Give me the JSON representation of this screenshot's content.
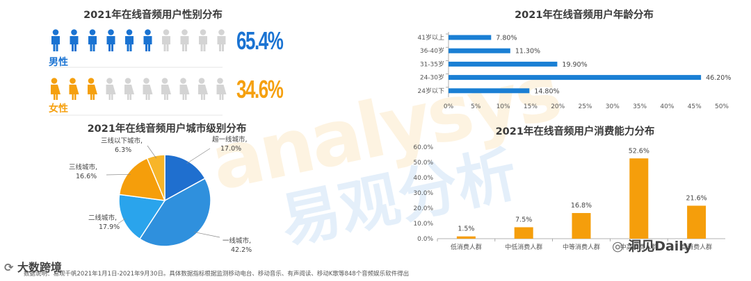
{
  "colors": {
    "blue": "#1a73d2",
    "orange": "#f5a00f",
    "light": "#d4d4d4"
  },
  "gender": {
    "title": "2021年在线音频用户性别分布",
    "male_label": "男性",
    "male_pct": "65.4%",
    "male_value": 65.4,
    "female_label": "女性",
    "female_pct": "34.6%",
    "female_value": 34.6
  },
  "chart_data": [
    {
      "type": "pie",
      "title": "2021年在线音频用户城市级别分布",
      "labels": [
        "超一线城市,",
        "一线城市,",
        "二线城市,",
        "三线城市,",
        "三线以下城市,"
      ],
      "values": [
        17.0,
        42.2,
        17.9,
        16.6,
        6.3
      ],
      "value_labels": [
        "17.0%",
        "42.2%",
        "17.9%",
        "16.6%",
        "6.3%"
      ],
      "colors": [
        "#1f6fcf",
        "#2f90dd",
        "#2aa4ec",
        "#f59e0b",
        "#f7b529"
      ]
    },
    {
      "type": "bar",
      "orientation": "horizontal",
      "title": "2021年在线音频用户年龄分布",
      "categories": [
        "41岁以上",
        "36-40岁",
        "31-35岁",
        "24-30岁",
        "24岁以下"
      ],
      "values": [
        7.8,
        11.3,
        19.9,
        46.2,
        14.8
      ],
      "value_labels": [
        "7.80%",
        "11.30%",
        "19.90%",
        "46.20%",
        "14.80%"
      ],
      "xlim": [
        0,
        50
      ],
      "ticks": [
        "0%",
        "5%",
        "10%",
        "15%",
        "20%",
        "25%",
        "30%",
        "35%",
        "40%",
        "45%",
        "50%"
      ]
    },
    {
      "type": "bar",
      "title": "2021年在线音频用户消费能力分布",
      "categories": [
        "低消费人群",
        "中低消费人群",
        "中等消费人群",
        "中高消费人群",
        "高消费人群"
      ],
      "values": [
        1.5,
        7.5,
        16.8,
        52.6,
        21.6
      ],
      "value_labels": [
        "1.5%",
        "7.5%",
        "16.8%",
        "52.6%",
        "21.6%"
      ],
      "ylim": [
        0,
        60
      ],
      "ticks": [
        "0.0%",
        "10.0%",
        "20.0%",
        "30.0%",
        "40.0%",
        "50.0%",
        "60.0%"
      ]
    }
  ],
  "watermark": {
    "latin": "analysys",
    "cn": "易观分析"
  },
  "footer": {
    "note": "数据说明：易观千帆2021年1月1日-2021年9月30日。具体数据指标根据监测移动电台、移动音乐、有声阅读、移动K歌等848个音频娱乐软件得出",
    "logo_left": "大数跨境",
    "logo_right": "洞见Daily"
  }
}
